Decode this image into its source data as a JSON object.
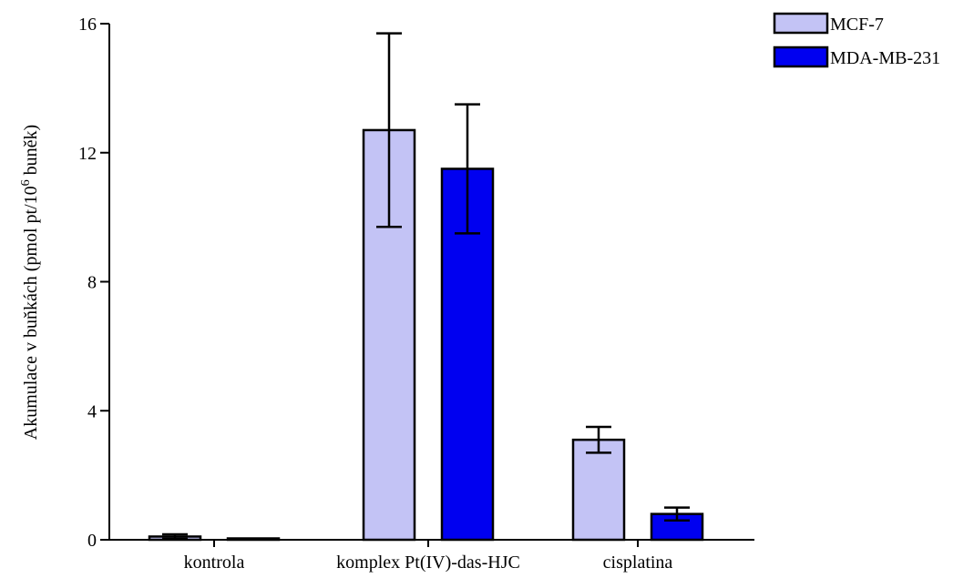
{
  "chart_data": {
    "type": "bar",
    "categories": [
      "kontrola",
      "komplex Pt(IV)-das-HJC",
      "cisplatina"
    ],
    "series": [
      {
        "name": "MCF-7",
        "color": "#c3c3f5",
        "values": [
          0.1,
          12.7,
          3.1
        ],
        "errors": [
          0.07,
          3.0,
          0.4
        ]
      },
      {
        "name": "MDA-MB-231",
        "color": "#0000f0",
        "values": [
          0.0,
          11.5,
          0.8
        ],
        "errors": [
          0.0,
          2.0,
          0.2
        ]
      }
    ],
    "ylabel_parts": [
      "Akumulace v buňkách (pmol pt/10",
      "6",
      " buněk)"
    ],
    "xlabel": "",
    "yticks": [
      "0",
      "4",
      "8",
      "12",
      "16"
    ],
    "ylim": [
      0,
      16
    ],
    "grid": false,
    "legend_position": "top-right"
  }
}
